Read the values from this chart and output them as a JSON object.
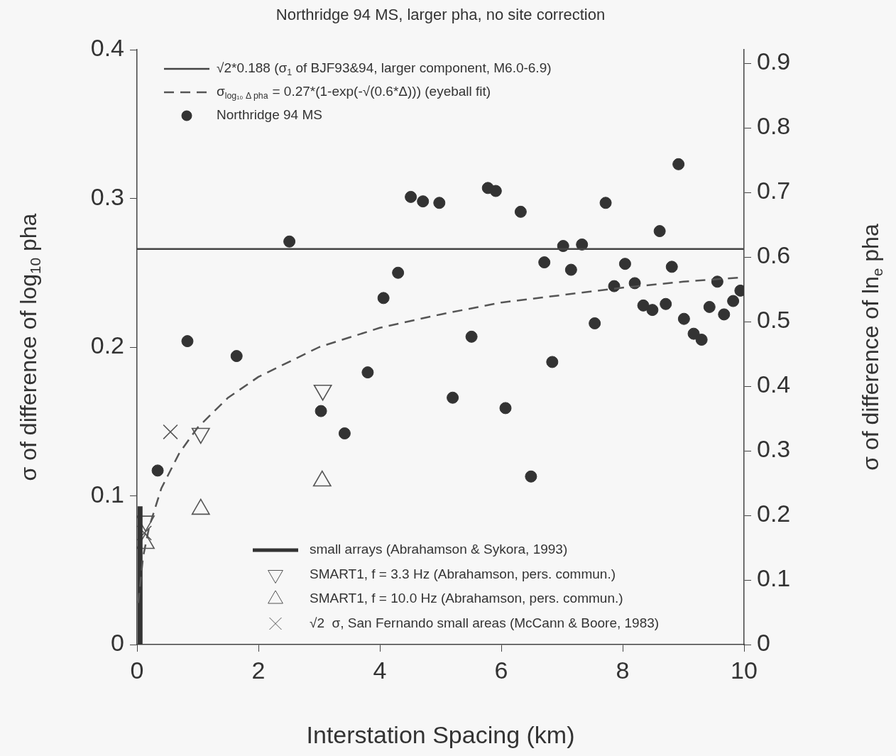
{
  "chart_data": {
    "type": "scatter",
    "title": "Northridge 94 MS, larger pha, no site correction",
    "xlabel": "Interstation Spacing (km)",
    "ylabel": "σ of difference of log$_{10}$ pha",
    "y2label": "σ of difference of ln$_{e}$ pha",
    "xlim": [
      0,
      10
    ],
    "xticks": [
      0,
      2,
      4,
      6,
      8,
      10
    ],
    "ylim": [
      0,
      0.4
    ],
    "yticks": [
      0,
      0.1,
      0.2,
      0.3,
      0.4
    ],
    "y2lim": [
      0,
      0.921
    ],
    "y2ticks": [
      0,
      0.1,
      0.2,
      0.3,
      0.4,
      0.5,
      0.6,
      0.7,
      0.8,
      0.9
    ],
    "legend": "top left",
    "series": [
      {
        "name": "√2*0.188 (σ$_{1}$ of BJF93&94, larger component, M6.0-6.9)",
        "type": "line",
        "line_style": "solid",
        "marker": "none",
        "color": "#444444",
        "x": [
          0,
          10
        ],
        "values": [
          0.266,
          0.266
        ]
      },
      {
        "name": "σ$_{log₁₀ Δ pha}$ = 0.27*(1-exp(-√(0.6*Δ))) (eyeball fit)",
        "type": "line",
        "line_style": "dashed",
        "marker": "none",
        "color": "#555555",
        "x": [
          0.02,
          0.1,
          0.2,
          0.4,
          0.7,
          1,
          1.5,
          2,
          3,
          4,
          5,
          6,
          7,
          8,
          9,
          10
        ],
        "values": [
          0.028,
          0.059,
          0.079,
          0.105,
          0.129,
          0.146,
          0.166,
          0.18,
          0.2,
          0.213,
          0.222,
          0.23,
          0.235,
          0.24,
          0.244,
          0.247
        ]
      },
      {
        "name": "Northridge 94 MS",
        "type": "scatter",
        "marker": "circle",
        "color": "#333333",
        "x": [
          0.34,
          0.83,
          1.64,
          2.51,
          3.03,
          3.42,
          3.8,
          4.06,
          4.3,
          4.51,
          4.71,
          4.98,
          5.2,
          5.51,
          5.78,
          5.91,
          6.07,
          6.32,
          6.49,
          6.71,
          6.84,
          7.02,
          7.15,
          7.33,
          7.54,
          7.72,
          7.86,
          8.04,
          8.2,
          8.34,
          8.49,
          8.61,
          8.71,
          8.81,
          8.92,
          9.01,
          9.17,
          9.3,
          9.43,
          9.56,
          9.67,
          9.82,
          9.94
        ],
        "values": [
          0.117,
          0.204,
          0.194,
          0.271,
          0.157,
          0.142,
          0.183,
          0.233,
          0.25,
          0.301,
          0.298,
          0.297,
          0.166,
          0.207,
          0.307,
          0.305,
          0.159,
          0.291,
          0.113,
          0.257,
          0.19,
          0.268,
          0.252,
          0.269,
          0.216,
          0.297,
          0.241,
          0.256,
          0.243,
          0.228,
          0.225,
          0.278,
          0.229,
          0.254,
          0.323,
          0.219,
          0.209,
          0.205,
          0.227,
          0.244,
          0.222,
          0.231,
          0.238
        ]
      },
      {
        "name": "small arrays (Abrahamson & Sykora, 1993)",
        "type": "line",
        "line_style": "solid",
        "marker": "none",
        "color": "#333333",
        "x": [
          0.05,
          0.05
        ],
        "values": [
          0,
          0.093
        ]
      },
      {
        "name": "SMART1, f = 3.3 Hz (Abrahamson, pers. commun.)",
        "type": "scatter",
        "marker": "triangle_down",
        "color": "#555555",
        "x": [
          0.14,
          1.05,
          3.06
        ],
        "values": [
          0.083,
          0.142,
          0.171
        ]
      },
      {
        "name": "SMART1, f = 10.0 Hz (Abrahamson, pers. commun.)",
        "type": "scatter",
        "marker": "triangle",
        "color": "#555555",
        "x": [
          0.14,
          1.05,
          3.05
        ],
        "values": [
          0.068,
          0.091,
          0.11
        ]
      },
      {
        "name": "√2  σ, San Fernando small areas (McCann & Boore, 1983)",
        "marker": "cross",
        "color": "#555555",
        "x": [
          0.12,
          0.55
        ],
        "values": [
          0.075,
          0.143
        ]
      }
    ]
  }
}
